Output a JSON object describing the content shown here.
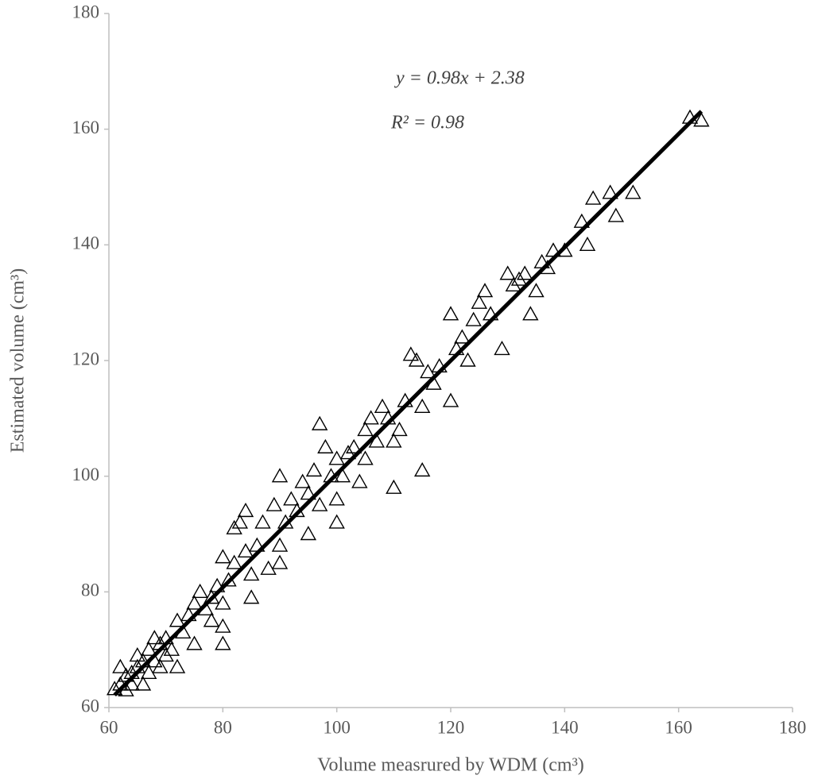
{
  "chart_data": {
    "type": "scatter",
    "xlabel": "Volume measrured by WDM (cm³)",
    "ylabel": "Estimated volume (cm³)",
    "annotations": [
      "y = 0.98x + 2.38",
      "R² = 0.98"
    ],
    "xlim": [
      60,
      180
    ],
    "xticks": [
      60,
      80,
      100,
      120,
      140,
      160,
      180
    ],
    "ylim": [
      60,
      180
    ],
    "yticks": [
      60,
      80,
      100,
      120,
      140,
      160,
      180
    ],
    "grid": false,
    "color": "#000000",
    "x": [
      61,
      62,
      62,
      63,
      63,
      64,
      64,
      65,
      65,
      66,
      66,
      67,
      67,
      68,
      68,
      69,
      69,
      70,
      70,
      71,
      72,
      72,
      73,
      74,
      75,
      75,
      76,
      77,
      78,
      78,
      79,
      80,
      80,
      80,
      80,
      81,
      82,
      82,
      83,
      84,
      84,
      85,
      85,
      86,
      87,
      88,
      89,
      90,
      90,
      90,
      91,
      92,
      93,
      94,
      95,
      95,
      96,
      97,
      97,
      98,
      99,
      100,
      100,
      100,
      101,
      102,
      103,
      104,
      105,
      105,
      106,
      107,
      108,
      109,
      110,
      110,
      111,
      112,
      113,
      114,
      115,
      115,
      116,
      117,
      118,
      120,
      120,
      121,
      122,
      123,
      124,
      125,
      126,
      127,
      129,
      130,
      131,
      132,
      133,
      134,
      135,
      136,
      137,
      138,
      140,
      143,
      144,
      145,
      148,
      149,
      152,
      162,
      164
    ],
    "y": [
      63.2,
      67,
      64,
      63,
      65.5,
      66,
      64,
      69,
      67,
      64,
      68,
      66,
      70,
      72,
      68,
      71,
      67,
      69,
      72,
      70,
      75,
      67,
      73,
      76,
      78,
      71,
      80,
      77,
      79,
      75,
      81,
      86,
      74,
      71,
      78,
      82,
      85,
      91,
      92,
      94,
      87,
      83,
      79,
      88,
      92,
      84,
      95,
      100,
      88,
      85,
      92,
      96,
      94,
      99,
      90,
      97,
      101,
      109,
      95,
      105,
      100,
      96,
      92,
      103,
      100,
      104,
      105,
      99,
      108,
      103,
      110,
      106,
      112,
      110,
      98,
      106,
      108,
      113,
      121,
      120,
      101,
      112,
      118,
      116,
      119,
      128,
      113,
      122,
      124,
      120,
      127,
      130,
      132,
      128,
      122,
      135,
      133,
      134,
      135,
      128,
      132,
      137,
      136,
      139,
      139,
      144,
      140,
      148,
      149,
      145,
      149,
      162,
      161.5
    ],
    "trendline": {
      "x": [
        61,
        164
      ],
      "y": [
        62.16,
        163.1
      ]
    }
  }
}
